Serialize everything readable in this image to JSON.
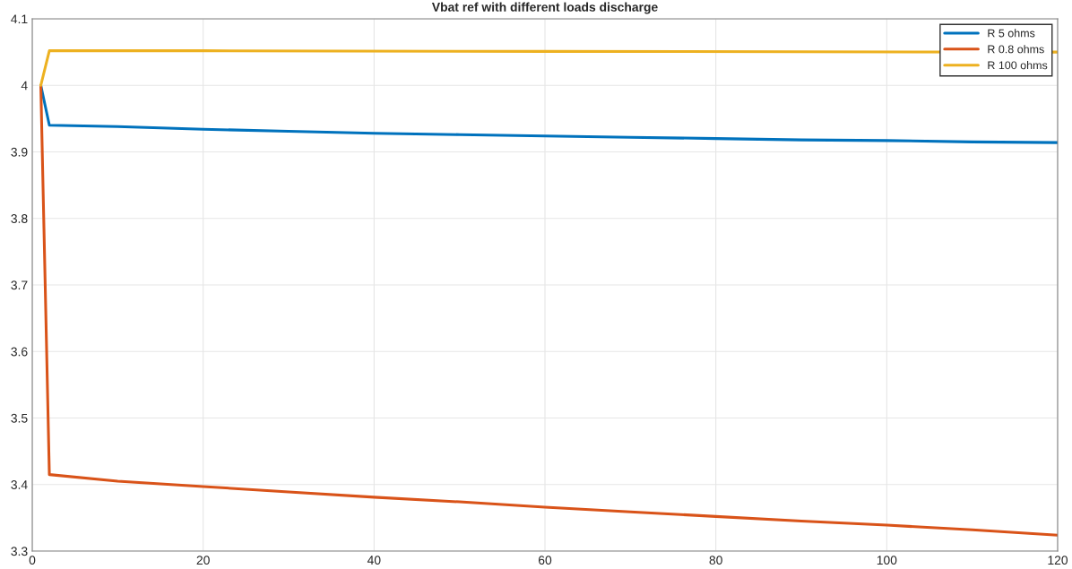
{
  "chart_data": {
    "type": "line",
    "title": "Vbat ref with different loads discharge",
    "xlim": [
      0,
      120
    ],
    "xticks": [
      0,
      20,
      40,
      60,
      80,
      100,
      120
    ],
    "ylim": [
      3.3,
      4.1
    ],
    "yticks": [
      3.3,
      3.4,
      3.5,
      3.6,
      3.7,
      3.8,
      3.9,
      {
        "value": 4,
        "label": "4"
      },
      4.1
    ],
    "grid": true,
    "legend": "top right",
    "marker": "none",
    "line_style": "solid",
    "series": [
      {
        "name": "R 5 ohms",
        "color": "#0072bd",
        "x": [
          1,
          2,
          10,
          20,
          30,
          40,
          50,
          60,
          70,
          80,
          90,
          100,
          110,
          120
        ],
        "values": [
          4.0,
          3.94,
          3.938,
          3.934,
          3.931,
          3.928,
          3.926,
          3.924,
          3.922,
          3.92,
          3.918,
          3.917,
          3.915,
          3.914
        ]
      },
      {
        "name": "R 0.8 ohms",
        "color": "#d95319",
        "x": [
          1,
          2,
          10,
          20,
          30,
          40,
          50,
          60,
          70,
          80,
          90,
          100,
          110,
          120
        ],
        "values": [
          4.0,
          3.415,
          3.405,
          3.397,
          3.389,
          3.381,
          3.374,
          3.366,
          3.359,
          3.352,
          3.345,
          3.339,
          3.332,
          3.324
        ]
      },
      {
        "name": "R 100 ohms",
        "color": "#edb120",
        "x": [
          1,
          2,
          20,
          60,
          120
        ],
        "values": [
          4.0,
          4.052,
          4.052,
          4.051,
          4.05
        ]
      }
    ]
  }
}
